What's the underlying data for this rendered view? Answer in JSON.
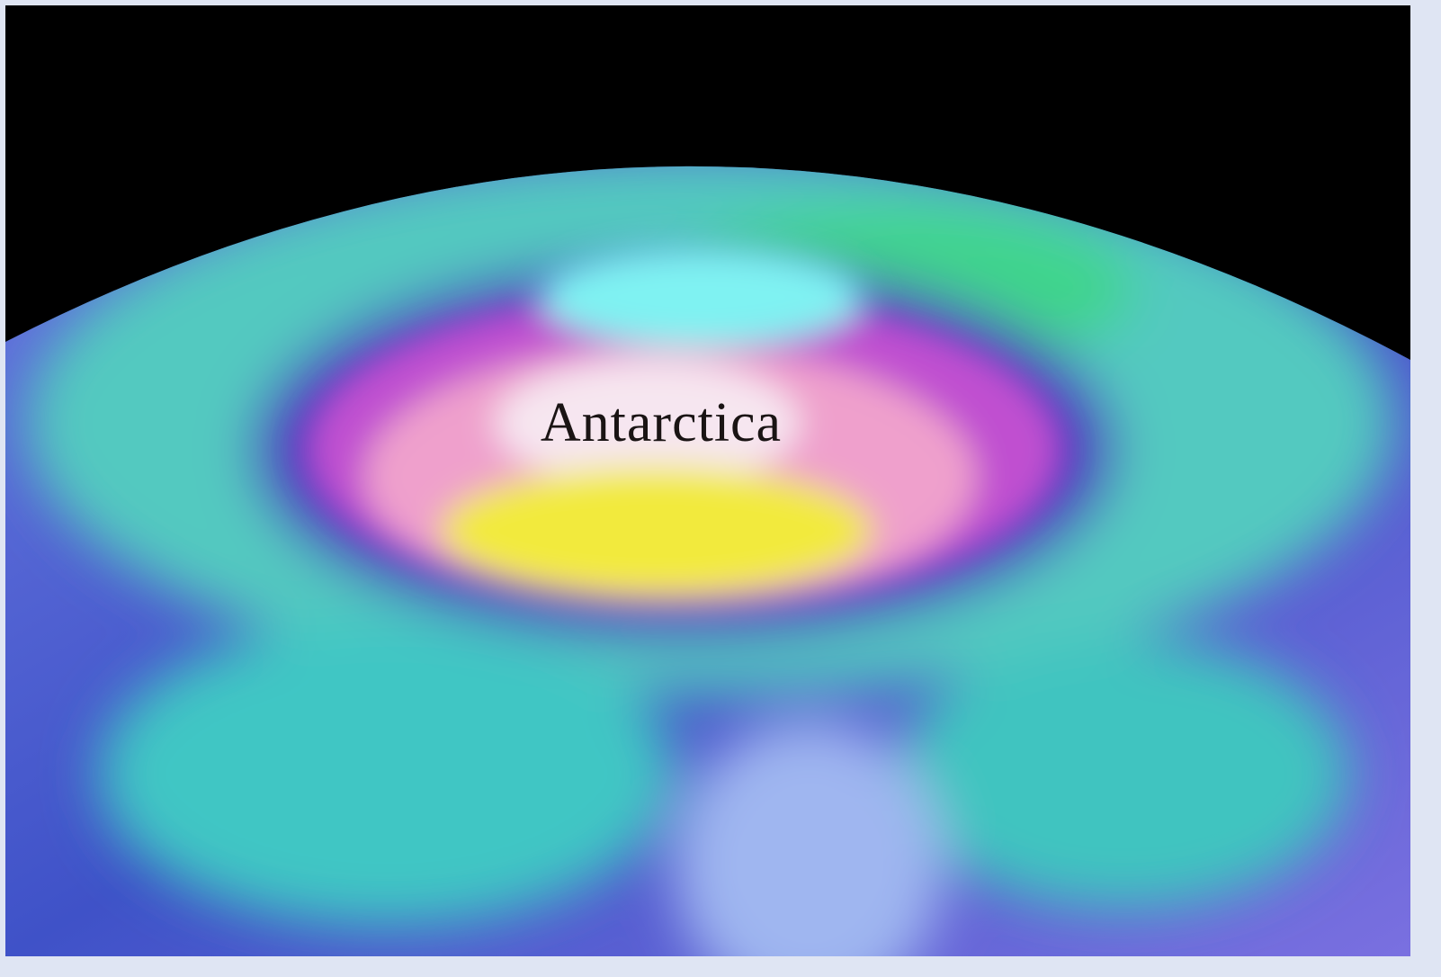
{
  "image": {
    "label": "Antarctica"
  }
}
